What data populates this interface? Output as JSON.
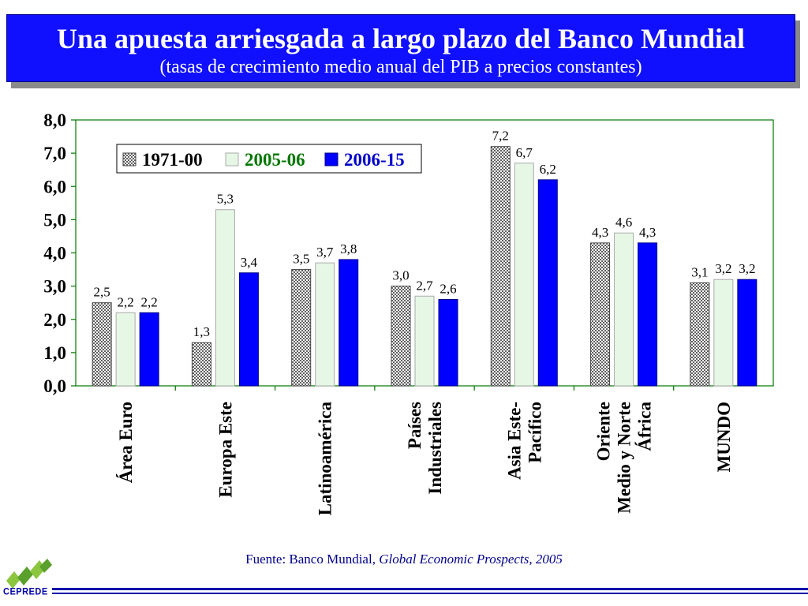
{
  "header": {
    "title": "Una apuesta arriesgada a largo plazo del Banco Mundial",
    "subtitle": "(tasas de crecimiento medio anual del PIB a precios constantes)"
  },
  "footer": {
    "source_prefix": "Fuente: Banco Mundial, ",
    "source_italic": "Global Economic Prospects, 2005",
    "logo_text": "CEPREDE"
  },
  "colors": {
    "title_bg": "#1010ff",
    "series_1971": "#ffffff",
    "series_2005": "#e6f7e6",
    "series_2006": "#0000ff",
    "legend_2005_text": "#007700",
    "legend_2006_text": "#0000cc",
    "axis": "#007700"
  },
  "chart_data": {
    "type": "bar",
    "categories": [
      [
        "Área Euro"
      ],
      [
        "Europa Este"
      ],
      [
        "Latinoamérica"
      ],
      [
        "Países",
        "Industriales"
      ],
      [
        "Asia Este-",
        "Pacífico"
      ],
      [
        "Oriente",
        "Medio y Norte",
        "África"
      ],
      [
        "MUNDO"
      ]
    ],
    "series": [
      {
        "name": "1971-00",
        "values": [
          2.5,
          1.3,
          3.5,
          3.0,
          7.2,
          4.3,
          3.1
        ],
        "labels": [
          "2,5",
          "1,3",
          "3,5",
          "3,0",
          "7,2",
          "4,3",
          "3,1"
        ]
      },
      {
        "name": "2005-06",
        "values": [
          2.2,
          5.3,
          3.7,
          2.7,
          6.7,
          4.6,
          3.2
        ],
        "labels": [
          "2,2",
          "5,3",
          "3,7",
          "2,7",
          "6,7",
          "4,6",
          "3,2"
        ]
      },
      {
        "name": "2006-15",
        "values": [
          2.2,
          3.4,
          3.8,
          2.6,
          6.2,
          4.3,
          3.2
        ],
        "labels": [
          "2,2",
          "3,4",
          "3,8",
          "2,6",
          "6,2",
          "4,3",
          "3,2"
        ]
      }
    ],
    "yticks": [
      "0,0",
      "1,0",
      "2,0",
      "3,0",
      "4,0",
      "5,0",
      "6,0",
      "7,0",
      "8,0"
    ],
    "ylim": [
      0,
      8
    ],
    "legend_position": "top-left",
    "grid": false
  }
}
